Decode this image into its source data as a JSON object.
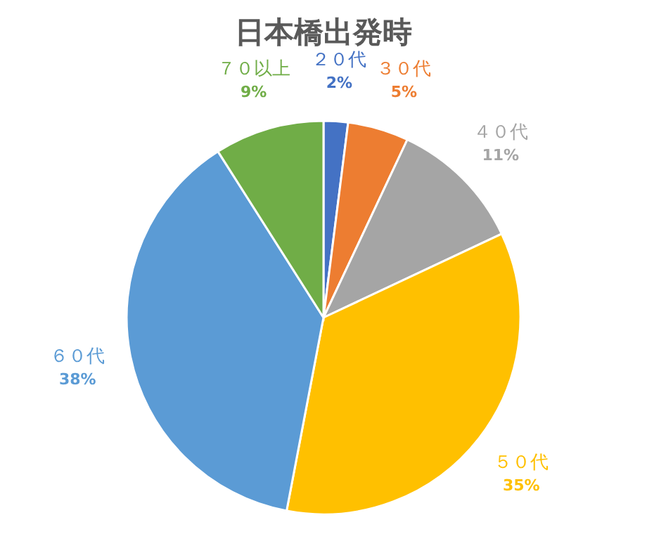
{
  "chart_data": {
    "type": "pie",
    "title": "日本橋出発時",
    "categories": [
      "２０代",
      "３０代",
      "４０代",
      "５０代",
      "６０代",
      "７０以上"
    ],
    "values": [
      2,
      5,
      11,
      35,
      38,
      9
    ],
    "value_labels": [
      "2%",
      "5%",
      "11%",
      "35%",
      "38%",
      "9%"
    ],
    "colors": [
      "#4472c4",
      "#ed7d31",
      "#a5a5a5",
      "#ffc000",
      "#5b9bd5",
      "#70ad47"
    ]
  }
}
